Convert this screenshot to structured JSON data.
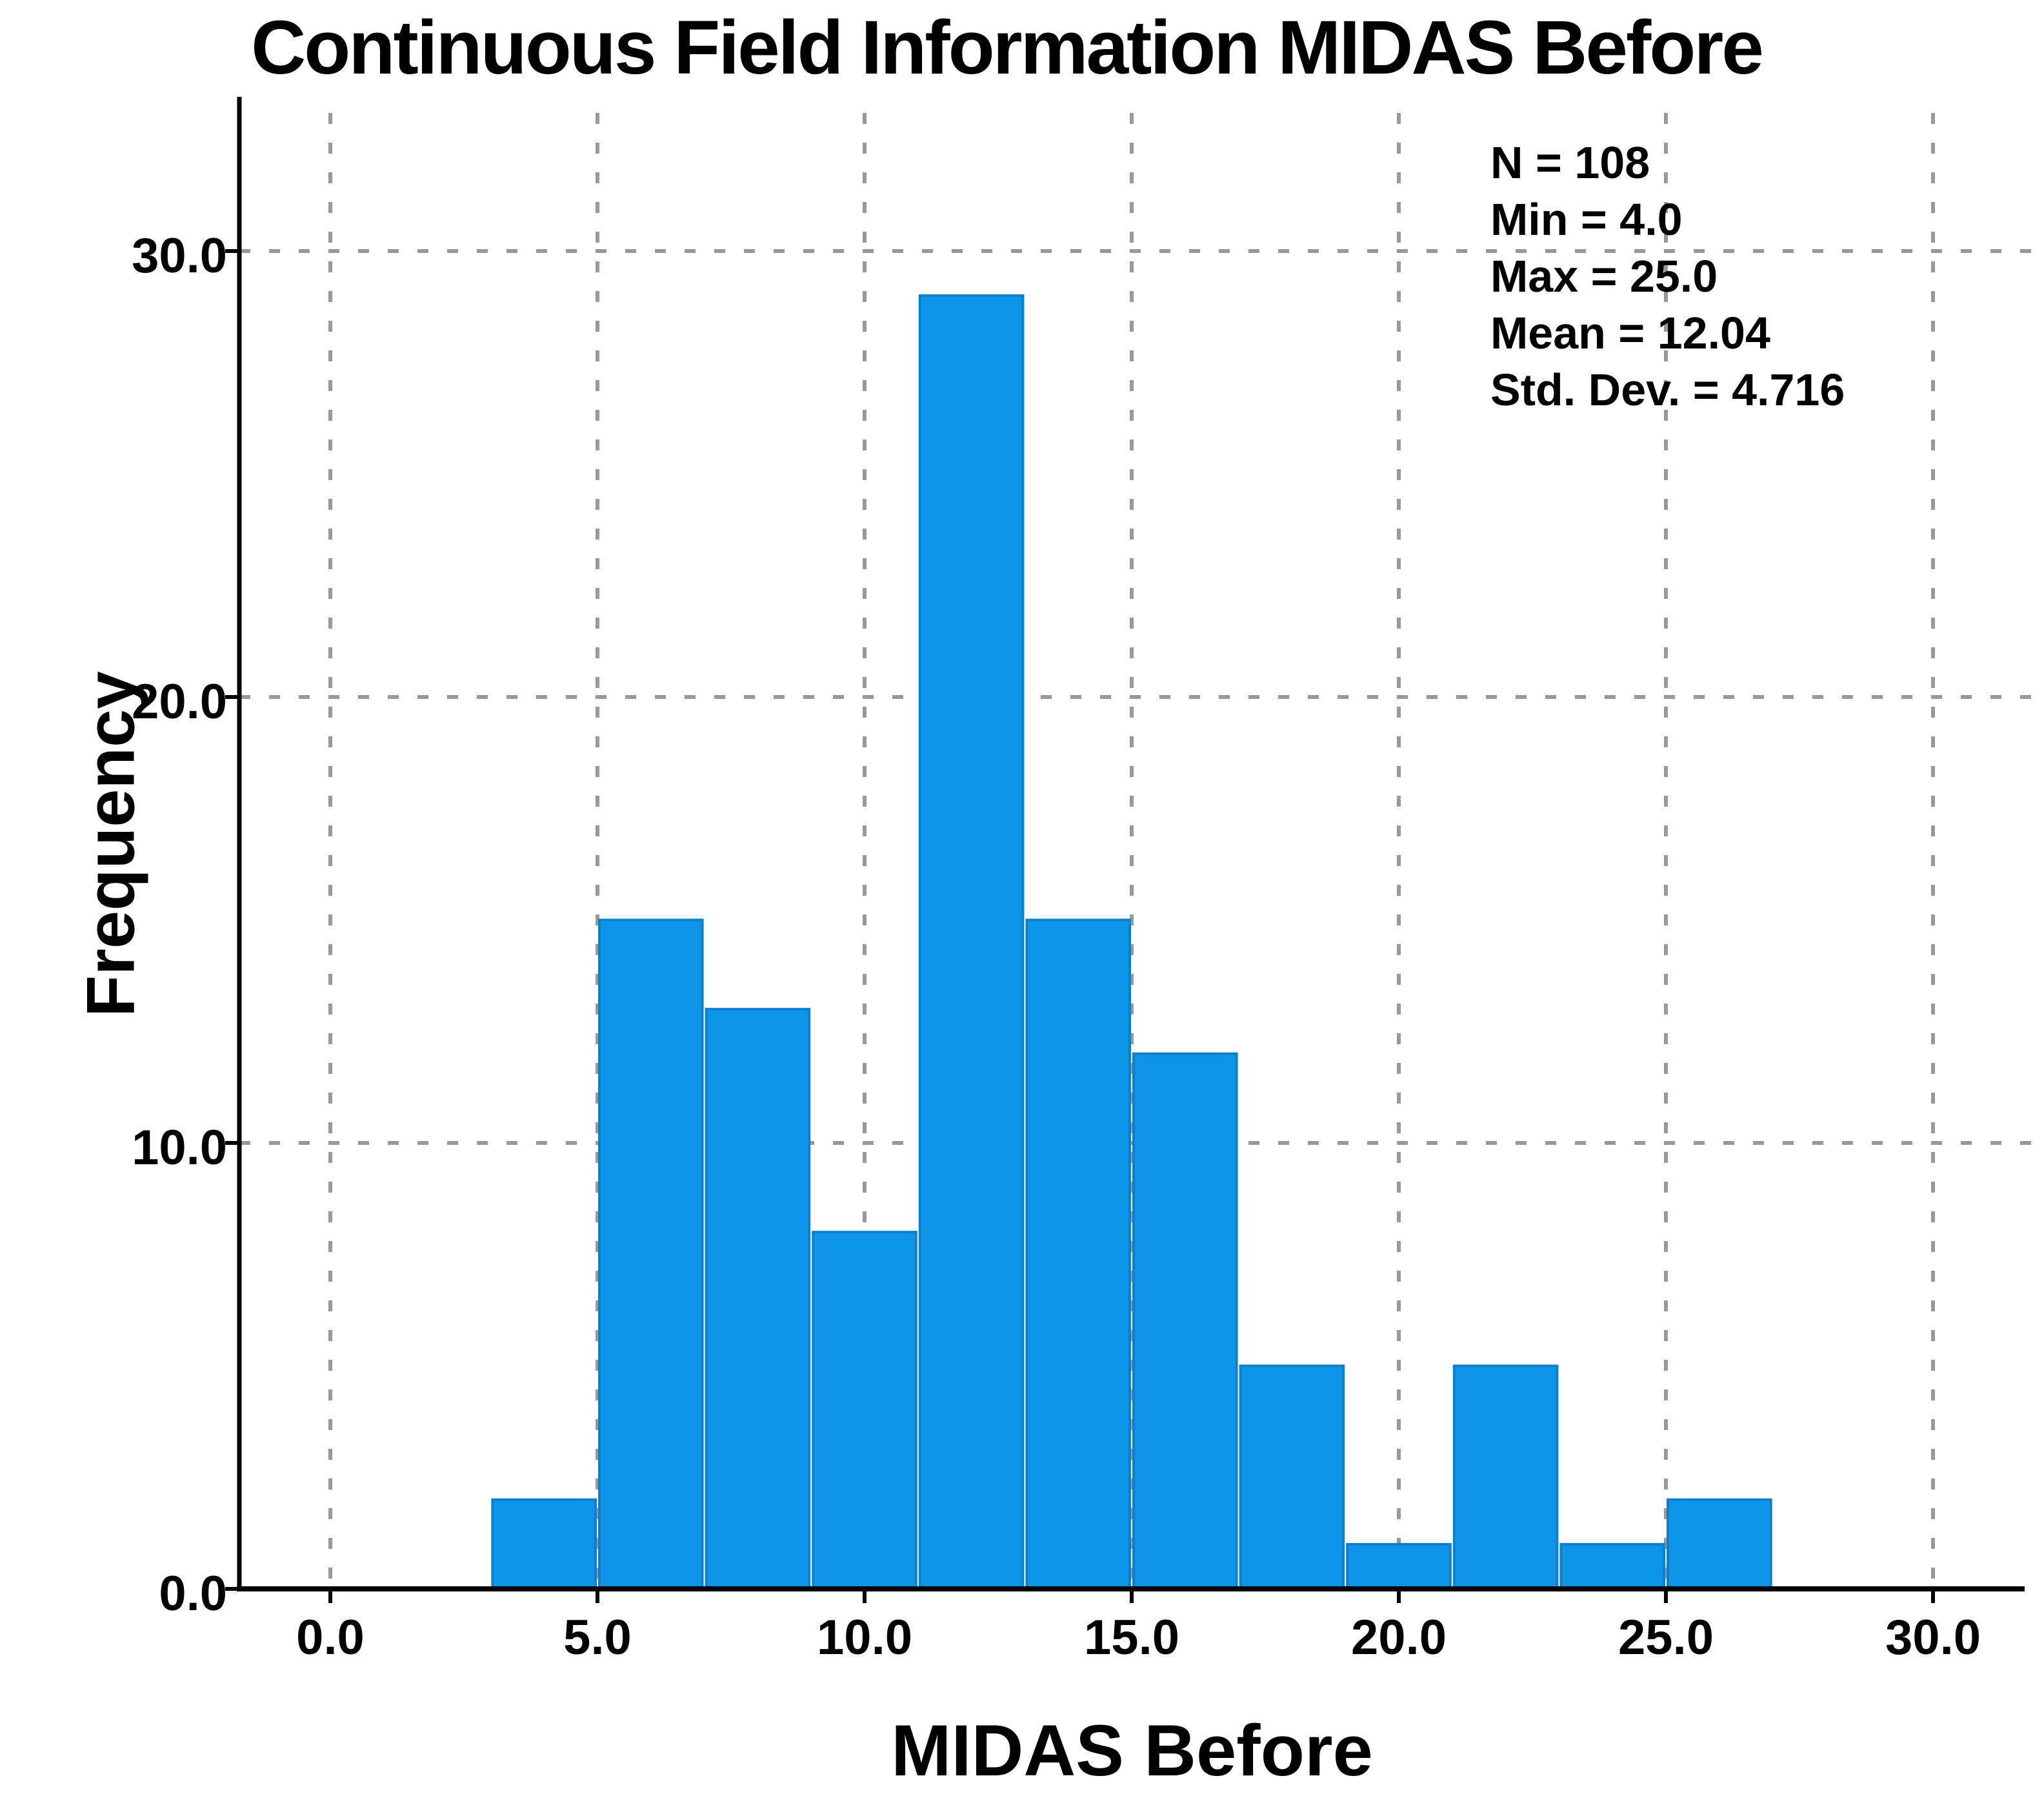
{
  "chart_data": {
    "type": "bar",
    "subtype": "histogram",
    "title": "Continuous Field Information MIDAS Before",
    "xlabel": "MIDAS Before",
    "ylabel": "Frequency",
    "bins": {
      "start": 3,
      "width": 2,
      "edges": [
        3,
        5,
        7,
        9,
        11,
        13,
        15,
        17,
        19,
        21,
        23,
        25,
        27
      ],
      "counts": [
        2,
        15,
        13,
        8,
        29,
        15,
        12,
        5,
        1,
        5,
        1,
        2
      ]
    },
    "x_ticks": [
      0,
      5,
      10,
      15,
      20,
      25,
      30
    ],
    "x_tick_labels": [
      "0.0",
      "5.0",
      "10.0",
      "15.0",
      "20.0",
      "25.0",
      "30.0"
    ],
    "y_ticks": [
      0,
      10,
      20,
      30
    ],
    "y_tick_labels": [
      "0.0",
      "10.0",
      "20.0",
      "30.0"
    ],
    "xlim": [
      -1.6,
      31.7
    ],
    "ylim": [
      0,
      33.4
    ],
    "grid": "dashed",
    "legend_position": "none",
    "bar_color": "#0F95E8",
    "bar_edge_color": "#0C80CC",
    "grid_color": "#999999",
    "axis_color": "#000000",
    "annotations": [
      "N = 108",
      "Min = 4.0",
      "Max = 25.0",
      "Mean = 12.04",
      "Std. Dev. = 4.716"
    ],
    "stats": {
      "N": 108,
      "Min": 4.0,
      "Max": 25.0,
      "Mean": 12.04,
      "Std_Dev": 4.716
    }
  }
}
